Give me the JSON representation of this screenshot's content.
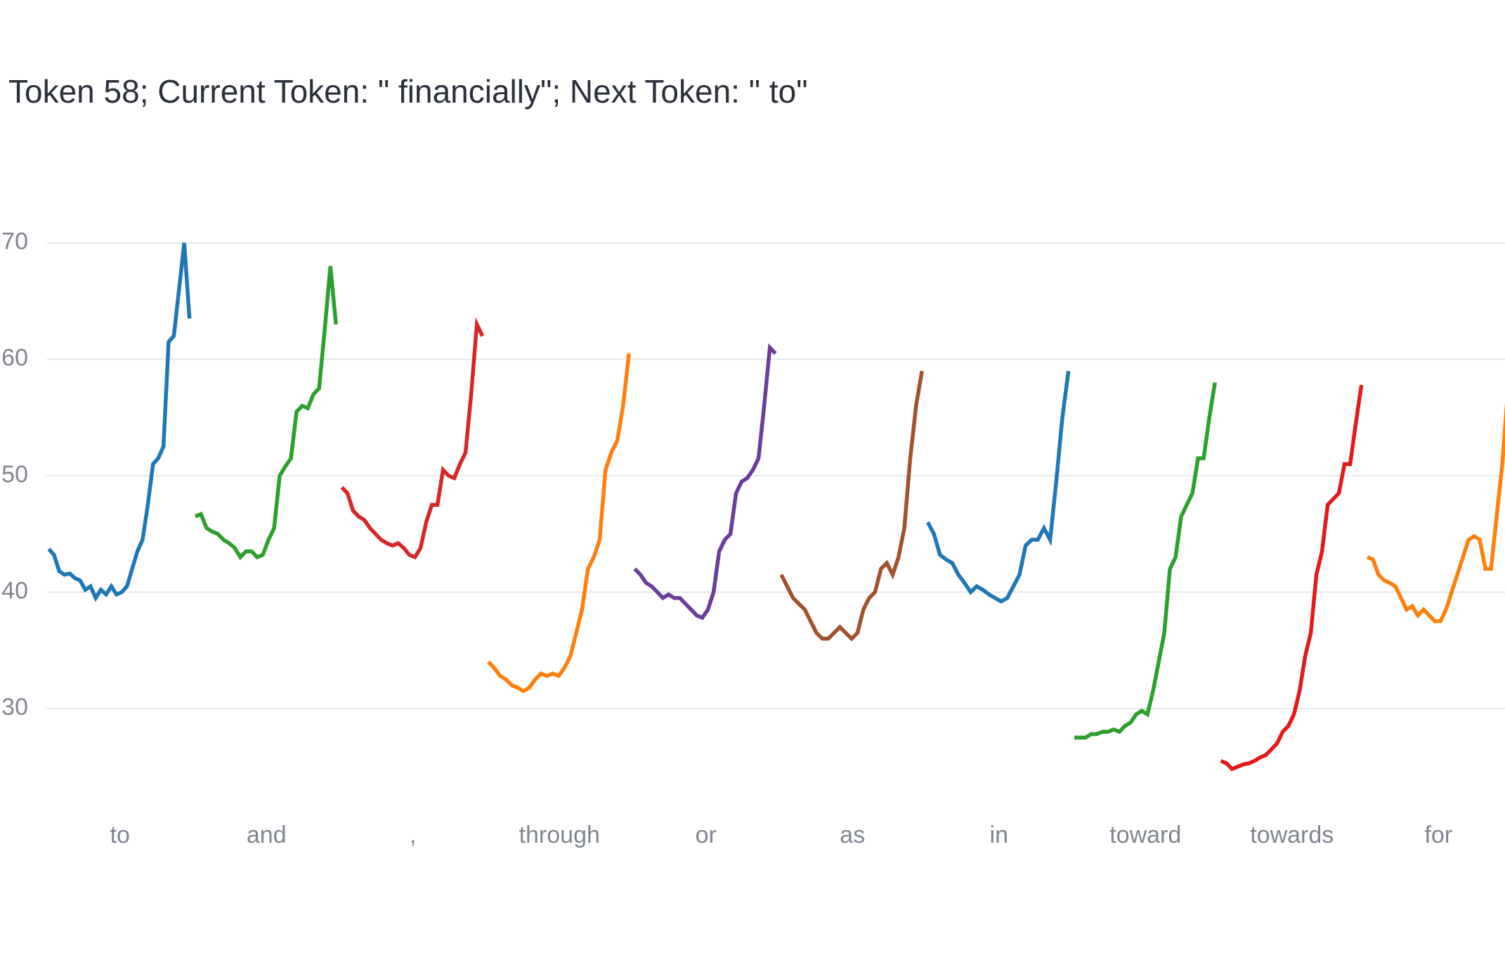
{
  "chart_data": {
    "type": "line",
    "title": "Token 58; Current Token: \" financially\"; Next Token: \" to\"",
    "ylim": [
      21,
      74
    ],
    "yticks": [
      30,
      40,
      50,
      60,
      70
    ],
    "grid": true,
    "series": [
      {
        "name": "to",
        "color": "#1f77b4",
        "values": [
          43.7,
          43.2,
          41.8,
          41.5,
          41.6,
          41.2,
          41.0,
          40.2,
          40.5,
          39.5,
          40.2,
          39.8,
          40.5,
          39.8,
          40.0,
          40.5,
          42.0,
          43.5,
          44.5,
          47.5,
          51.0,
          51.5,
          52.5,
          61.5,
          62.0,
          66.0,
          70.0,
          63.5
        ]
      },
      {
        "name": "and",
        "color": "#2ca02c",
        "values": [
          46.5,
          46.7,
          45.5,
          45.2,
          45.0,
          44.5,
          44.2,
          43.8,
          43.0,
          43.5,
          43.5,
          43.0,
          43.2,
          44.5,
          45.5,
          50.0,
          50.8,
          51.5,
          55.5,
          56.0,
          55.8,
          57.0,
          57.5,
          62.5,
          68.0,
          63.0
        ]
      },
      {
        "name": ",",
        "color": "#d62728",
        "values": [
          49.0,
          48.5,
          47.0,
          46.5,
          46.2,
          45.5,
          45.0,
          44.5,
          44.2,
          44.0,
          44.2,
          43.8,
          43.2,
          43.0,
          43.8,
          46.0,
          47.5,
          47.5,
          50.5,
          50.0,
          49.8,
          51.0,
          52.0,
          57.0,
          63.0,
          62.0
        ]
      },
      {
        "name": "through",
        "color": "#ff7f0e",
        "values": [
          34.0,
          33.5,
          32.8,
          32.5,
          32.0,
          31.8,
          31.5,
          31.8,
          32.5,
          33.0,
          32.8,
          33.0,
          32.8,
          33.5,
          34.5,
          36.5,
          38.5,
          42.0,
          43.0,
          44.5,
          50.5,
          52.0,
          53.0,
          56.0,
          60.5
        ]
      },
      {
        "name": "or",
        "color": "#6a3d9a",
        "values": [
          42.0,
          41.5,
          40.8,
          40.5,
          40.0,
          39.5,
          39.8,
          39.5,
          39.5,
          39.0,
          38.5,
          38.0,
          37.8,
          38.5,
          40.0,
          43.5,
          44.5,
          45.0,
          48.5,
          49.5,
          49.8,
          50.5,
          51.5,
          56.0,
          61.0,
          60.5
        ]
      },
      {
        "name": "as",
        "color": "#a0522d",
        "values": [
          41.5,
          40.5,
          39.5,
          39.0,
          38.5,
          37.5,
          36.5,
          36.0,
          36.0,
          36.5,
          37.0,
          36.5,
          36.0,
          36.5,
          38.5,
          39.5,
          40.0,
          42.0,
          42.5,
          41.5,
          43.0,
          45.5,
          51.5,
          56.0,
          59.0
        ]
      },
      {
        "name": "in",
        "color": "#1f77b4",
        "values": [
          46.0,
          45.0,
          43.2,
          42.8,
          42.5,
          41.5,
          40.8,
          40.0,
          40.5,
          40.2,
          39.8,
          39.5,
          39.2,
          39.5,
          40.5,
          41.5,
          44.0,
          44.5,
          44.5,
          45.5,
          44.5,
          49.5,
          55.0,
          59.0
        ]
      },
      {
        "name": "toward",
        "color": "#2ca02c",
        "values": [
          27.5,
          27.5,
          27.5,
          27.8,
          27.8,
          28.0,
          28.0,
          28.2,
          28.0,
          28.5,
          28.8,
          29.5,
          29.8,
          29.5,
          31.5,
          34.0,
          36.5,
          42.0,
          43.0,
          46.5,
          47.5,
          48.5,
          51.5,
          51.5,
          55.0,
          58.0
        ]
      },
      {
        "name": "towards",
        "color": "#e31a1c",
        "values": [
          25.5,
          25.3,
          24.8,
          25.0,
          25.2,
          25.3,
          25.5,
          25.8,
          26.0,
          26.5,
          27.0,
          28.0,
          28.5,
          29.5,
          31.5,
          34.5,
          36.5,
          41.5,
          43.5,
          47.5,
          48.0,
          48.5,
          51.0,
          51.0,
          54.5,
          57.8
        ]
      },
      {
        "name": "for",
        "color": "#ff7f0e",
        "values": [
          43.0,
          42.8,
          41.5,
          41.0,
          40.8,
          40.5,
          39.5,
          38.5,
          38.8,
          38.0,
          38.5,
          38.0,
          37.5,
          37.5,
          38.5,
          40.0,
          41.5,
          43.0,
          44.5,
          44.8,
          44.5,
          42.0,
          42.0,
          46.5,
          51.0,
          57.5
        ]
      }
    ]
  }
}
